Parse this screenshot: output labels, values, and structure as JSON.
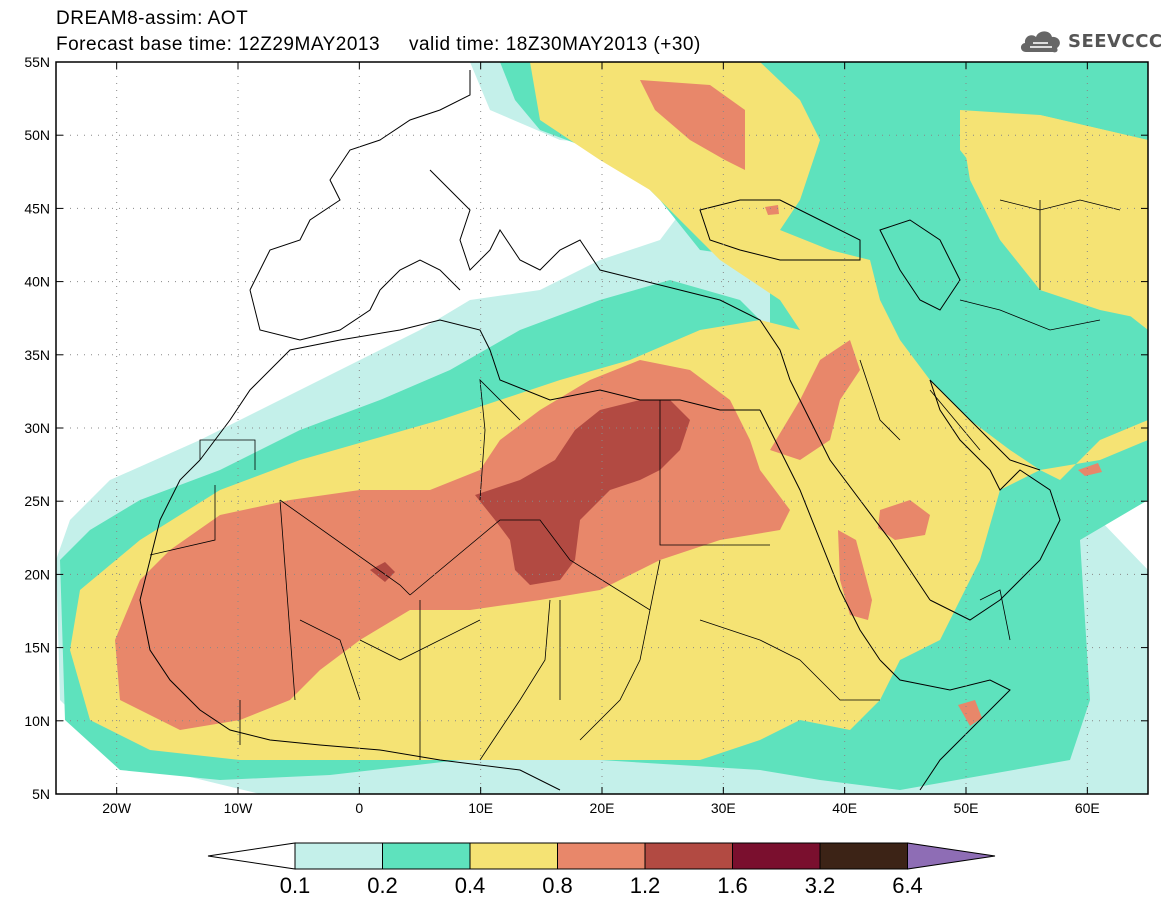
{
  "header": {
    "title": "DREAM8-assim: AOT",
    "base_label": "Forecast base time: 12Z29MAY2013",
    "valid_label": "valid time: 18Z30MAY2013 (+30)"
  },
  "logo": {
    "text": "SEEVCCC",
    "icon": "cloud-icon"
  },
  "map": {
    "lon_ticks": [
      {
        "value": -20,
        "label": "20W"
      },
      {
        "value": -10,
        "label": "10W"
      },
      {
        "value": 0,
        "label": "0"
      },
      {
        "value": 10,
        "label": "10E"
      },
      {
        "value": 20,
        "label": "20E"
      },
      {
        "value": 30,
        "label": "30E"
      },
      {
        "value": 40,
        "label": "40E"
      },
      {
        "value": 50,
        "label": "50E"
      },
      {
        "value": 60,
        "label": "60E"
      }
    ],
    "lat_ticks": [
      {
        "value": 55,
        "label": "55N"
      },
      {
        "value": 50,
        "label": "50N"
      },
      {
        "value": 45,
        "label": "45N"
      },
      {
        "value": 40,
        "label": "40N"
      },
      {
        "value": 35,
        "label": "35N"
      },
      {
        "value": 30,
        "label": "30N"
      },
      {
        "value": 25,
        "label": "25N"
      },
      {
        "value": 20,
        "label": "20N"
      },
      {
        "value": 15,
        "label": "15N"
      },
      {
        "value": 10,
        "label": "10N"
      },
      {
        "value": 5,
        "label": "5N"
      }
    ],
    "lon_range": [
      -25,
      65
    ],
    "lat_range": [
      5,
      55
    ],
    "grid": "dotted"
  },
  "legend": {
    "labels": [
      "0.1",
      "0.2",
      "0.4",
      "0.8",
      "1.2",
      "1.6",
      "3.2",
      "6.4"
    ],
    "bin_colors": [
      "#c4f0ea",
      "#5ee2bd",
      "#f5e374",
      "#e8876a",
      "#b24a42",
      "#7a0f2e",
      "#3c2316"
    ],
    "under_color": "#ffffff",
    "over_color": "#8e6db5"
  }
}
